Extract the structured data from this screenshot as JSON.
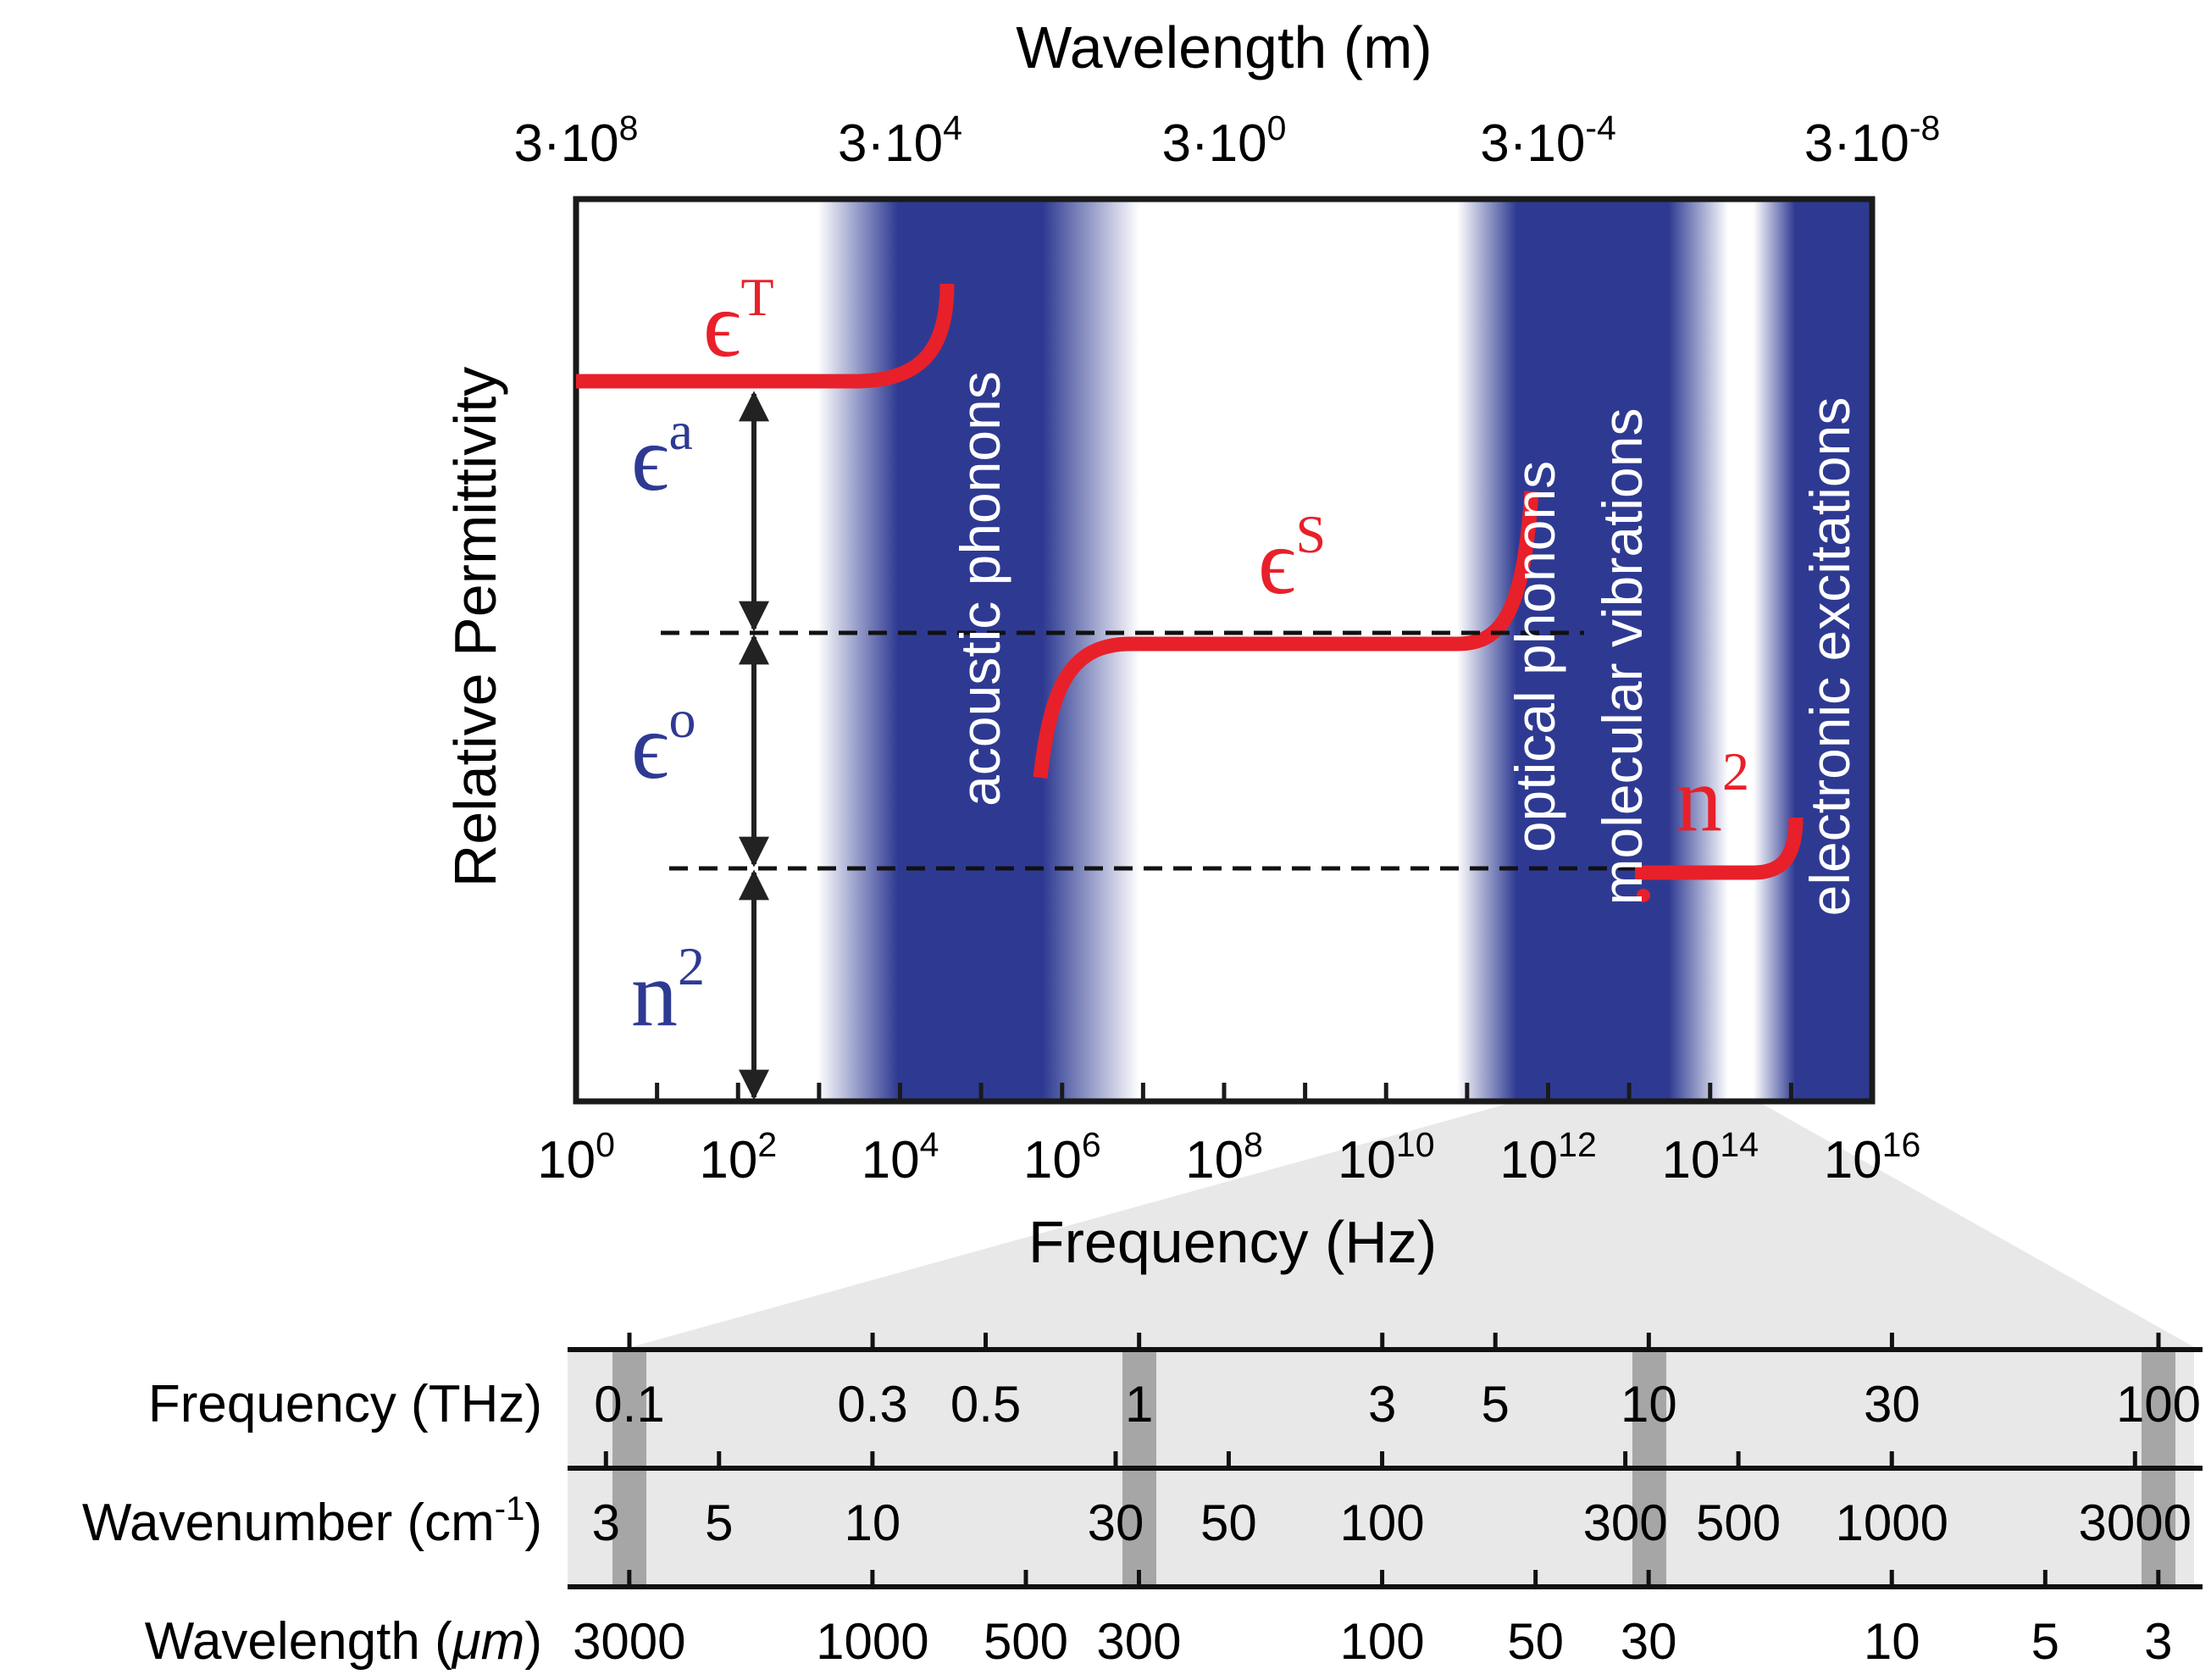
{
  "main_chart": {
    "title_top": "Wavelength (m)",
    "wavelength_ticks": [
      {
        "base": "3·10",
        "exp": "8"
      },
      {
        "base": "3·10",
        "exp": "4"
      },
      {
        "base": "3·10",
        "exp": "0"
      },
      {
        "base": "3·10",
        "exp": "-4"
      },
      {
        "base": "3·10",
        "exp": "-8"
      }
    ],
    "frequency_ticks": [
      {
        "base": "10",
        "exp": "0"
      },
      {
        "base": "10",
        "exp": "2"
      },
      {
        "base": "10",
        "exp": "4"
      },
      {
        "base": "10",
        "exp": "6"
      },
      {
        "base": "10",
        "exp": "8"
      },
      {
        "base": "10",
        "exp": "10"
      },
      {
        "base": "10",
        "exp": "12"
      },
      {
        "base": "10",
        "exp": "14"
      },
      {
        "base": "10",
        "exp": "16"
      }
    ],
    "x_axis_label": "Frequency (Hz)",
    "y_axis_label": "Relative Permittivity",
    "band_labels": {
      "acoustic": "acoustic phonons",
      "optical": "optical phonons",
      "molecular": "molecular vibrations",
      "electronic": "electronic excitations"
    },
    "curve_labels": {
      "eps_T": {
        "sym": "ϵ",
        "sup": "T"
      },
      "eps_S": {
        "sym": "ϵ",
        "sup": "S"
      },
      "n2": {
        "sym": "n",
        "sup": "2"
      }
    },
    "arrow_labels": {
      "eps_a": {
        "sym": "ϵ",
        "sup": "a"
      },
      "eps_o": {
        "sym": "ϵ",
        "sup": "o"
      },
      "n2": {
        "sym": "n",
        "sup": "2"
      }
    },
    "colors": {
      "band": "#2e3a92",
      "curve": "#e8202a",
      "label_blue": "#2e3a92"
    }
  },
  "conversion_scale": {
    "frequency_row": {
      "label": "Frequency (THz)",
      "values": [
        "0.1",
        "0.3",
        "0.5",
        "1",
        "3",
        "5",
        "10",
        "30",
        "100"
      ]
    },
    "wavenumber_row": {
      "label_base": "Wavenumber (cm",
      "label_sup": "-1",
      "label_end": ")",
      "values": [
        "3",
        "5",
        "10",
        "30",
        "50",
        "100",
        "300",
        "500",
        "1000",
        "3000"
      ]
    },
    "wavelength_row": {
      "label_base": "Wavelength (",
      "label_unit": "μm",
      "label_end": ")",
      "values": [
        "3000",
        "1000",
        "500",
        "300",
        "100",
        "50",
        "30",
        "10",
        "5",
        "3"
      ]
    }
  }
}
